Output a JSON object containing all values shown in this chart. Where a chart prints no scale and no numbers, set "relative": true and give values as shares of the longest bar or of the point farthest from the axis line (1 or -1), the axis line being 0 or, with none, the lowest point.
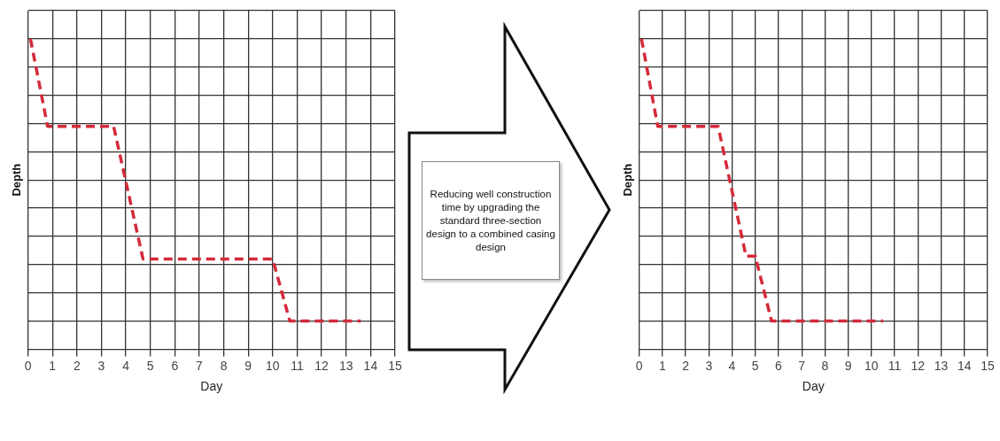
{
  "chart_data": [
    {
      "type": "line",
      "xlabel": "Day",
      "ylabel": "Depth",
      "relative": true,
      "color": "#d42a3a",
      "line_style": "dashed",
      "marker": "none",
      "grid": true,
      "legend": false,
      "x": [
        0.1,
        0.8,
        3.5,
        4.7,
        10.0,
        10.7,
        13.6
      ],
      "values": [
        1,
        0.69,
        0.69,
        0.22,
        0.22,
        0,
        0
      ],
      "xlim": [
        0,
        15
      ],
      "xticks": [
        0,
        1,
        2,
        3,
        4,
        5,
        6,
        7,
        8,
        9,
        10,
        11,
        12,
        13,
        14,
        15
      ],
      "tick_labels": "x"
    },
    {
      "type": "other",
      "annotations": [
        "Reducing well construction time by upgrading the standard three-section design to a combined casing design"
      ]
    },
    {
      "type": "line",
      "xlabel": "Day",
      "ylabel": "Depth",
      "relative": true,
      "color": "#d42a3a",
      "line_style": "dashed",
      "marker": "none",
      "grid": true,
      "legend": false,
      "x": [
        0.1,
        0.8,
        3.4,
        4.6,
        5.0,
        5.7,
        10.5
      ],
      "values": [
        1,
        0.69,
        0.69,
        0.23,
        0.23,
        0,
        0
      ],
      "xlim": [
        0,
        15
      ],
      "xticks": [
        0,
        1,
        2,
        3,
        4,
        5,
        6,
        7,
        8,
        9,
        10,
        11,
        12,
        13,
        14,
        15
      ],
      "tick_labels": "x"
    }
  ]
}
